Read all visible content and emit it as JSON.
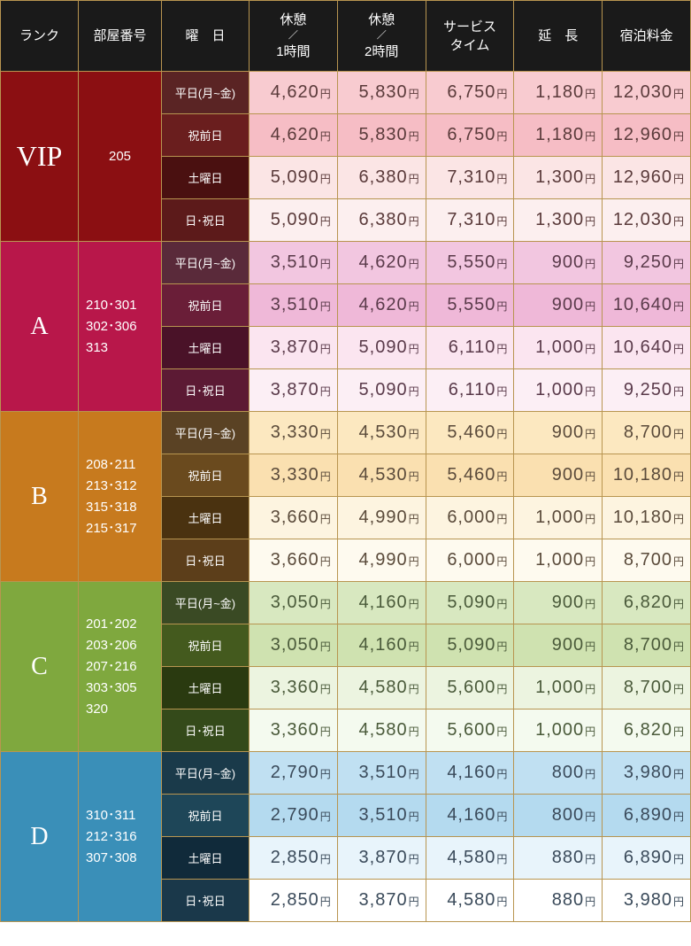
{
  "headers": {
    "rank": "ランク",
    "room": "部屋番号",
    "day": "曜　日",
    "rest1_top": "休憩",
    "rest1_mid": "／",
    "rest1_bot": "1時間",
    "rest2_top": "休憩",
    "rest2_mid": "／",
    "rest2_bot": "2時間",
    "service_top": "サービス",
    "service_bot": "タイム",
    "extend": "延　長",
    "stay": "宿泊料金"
  },
  "yen": "円",
  "day_labels": [
    "平日(月~金)",
    "祝前日",
    "土曜日",
    "日･祝日"
  ],
  "ranks": [
    {
      "label": "VIP",
      "cls": "vip",
      "rooms": "205",
      "rows": [
        [
          "4,620",
          "5,830",
          "6,750",
          "1,180",
          "12,030"
        ],
        [
          "4,620",
          "5,830",
          "6,750",
          "1,180",
          "12,960"
        ],
        [
          "5,090",
          "6,380",
          "7,310",
          "1,300",
          "12,960"
        ],
        [
          "5,090",
          "6,380",
          "7,310",
          "1,300",
          "12,030"
        ]
      ]
    },
    {
      "label": "A",
      "cls": "a",
      "rooms": "210･301\n302･306\n313",
      "rows": [
        [
          "3,510",
          "4,620",
          "5,550",
          "900",
          "9,250"
        ],
        [
          "3,510",
          "4,620",
          "5,550",
          "900",
          "10,640"
        ],
        [
          "3,870",
          "5,090",
          "6,110",
          "1,000",
          "10,640"
        ],
        [
          "3,870",
          "5,090",
          "6,110",
          "1,000",
          "9,250"
        ]
      ]
    },
    {
      "label": "B",
      "cls": "b",
      "rooms": "208･211\n213･312\n315･318\n215･317",
      "rows": [
        [
          "3,330",
          "4,530",
          "5,460",
          "900",
          "8,700"
        ],
        [
          "3,330",
          "4,530",
          "5,460",
          "900",
          "10,180"
        ],
        [
          "3,660",
          "4,990",
          "6,000",
          "1,000",
          "10,180"
        ],
        [
          "3,660",
          "4,990",
          "6,000",
          "1,000",
          "8,700"
        ]
      ]
    },
    {
      "label": "C",
      "cls": "c",
      "rooms": "201･202\n203･206\n207･216\n303･305\n320",
      "rows": [
        [
          "3,050",
          "4,160",
          "5,090",
          "900",
          "6,820"
        ],
        [
          "3,050",
          "4,160",
          "5,090",
          "900",
          "8,700"
        ],
        [
          "3,360",
          "4,580",
          "5,600",
          "1,000",
          "8,700"
        ],
        [
          "3,360",
          "4,580",
          "5,600",
          "1,000",
          "6,820"
        ]
      ]
    },
    {
      "label": "D",
      "cls": "d",
      "rooms": "310･311\n212･316\n307･308",
      "rows": [
        [
          "2,790",
          "3,510",
          "4,160",
          "800",
          "3,980"
        ],
        [
          "2,790",
          "3,510",
          "4,160",
          "800",
          "6,890"
        ],
        [
          "2,850",
          "3,870",
          "4,580",
          "880",
          "6,890"
        ],
        [
          "2,850",
          "3,870",
          "4,580",
          "880",
          "3,980"
        ]
      ]
    }
  ]
}
